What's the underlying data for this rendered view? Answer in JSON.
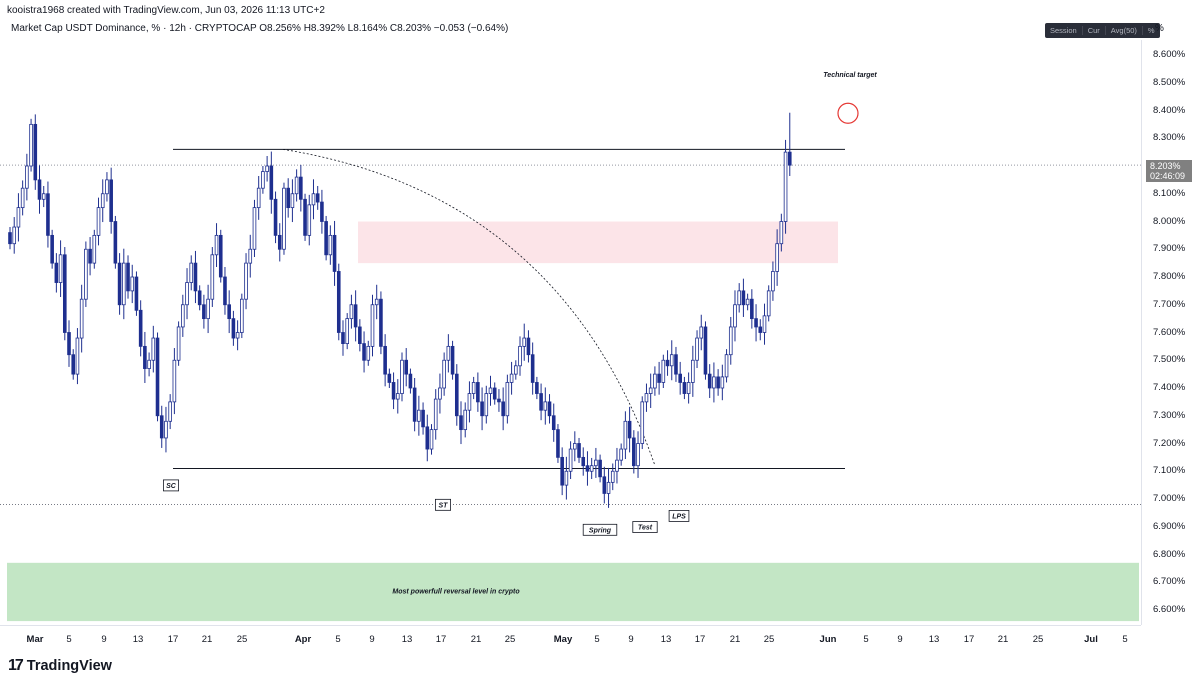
{
  "header": {
    "credit": "kooistra1968 created with TradingView.com, Jun 03, 2026 11:13 UTC+2",
    "symbol_line": "Market Cap USDT Dominance, % · 12h · CRYPTOCAP  O8.256%  H8.392%  L8.164%  C8.203%  −0.053 (−0.64%)",
    "toolbar": [
      "Session",
      "Cur",
      "Avg(50)",
      "%"
    ],
    "percent_label": "%"
  },
  "price_scale": {
    "ticks": [
      "8.600%",
      "8.500%",
      "8.400%",
      "8.300%",
      "8.200%",
      "8.100%",
      "8.000%",
      "7.900%",
      "7.800%",
      "7.700%",
      "7.600%",
      "7.500%",
      "7.400%",
      "7.300%",
      "7.200%",
      "7.100%",
      "7.000%",
      "6.900%",
      "6.800%",
      "6.700%",
      "6.600%"
    ],
    "last_price": "8.203%",
    "countdown": "02:46:09"
  },
  "time_scale": {
    "ticks": [
      {
        "label": "Mar",
        "month": true
      },
      {
        "label": "5"
      },
      {
        "label": "9"
      },
      {
        "label": "13"
      },
      {
        "label": "17"
      },
      {
        "label": "21"
      },
      {
        "label": "25"
      },
      {
        "label": "Apr",
        "month": true
      },
      {
        "label": "5"
      },
      {
        "label": "9"
      },
      {
        "label": "13"
      },
      {
        "label": "17"
      },
      {
        "label": "21"
      },
      {
        "label": "25"
      },
      {
        "label": "May",
        "month": true
      },
      {
        "label": "5"
      },
      {
        "label": "9"
      },
      {
        "label": "13"
      },
      {
        "label": "17"
      },
      {
        "label": "21"
      },
      {
        "label": "25"
      },
      {
        "label": "Jun",
        "month": true
      },
      {
        "label": "5"
      },
      {
        "label": "9"
      },
      {
        "label": "13"
      },
      {
        "label": "17"
      },
      {
        "label": "21"
      },
      {
        "label": "25"
      },
      {
        "label": "Jul",
        "month": true
      },
      {
        "label": "5"
      }
    ]
  },
  "annotations": {
    "sc": "SC",
    "st": "ST",
    "spring": "Spring",
    "test": "Test",
    "lps": "LPS",
    "technical_target": "Technical target",
    "reversal_zone": "Most powerfull reversal level in crypto"
  },
  "brand": {
    "logo_mark": "17",
    "name": "TradingView"
  },
  "colors": {
    "up": "#ffffff",
    "down": "#1e2f8f",
    "resistance_zone": "#fce4e8",
    "support_zone": "#c3e6c5",
    "target_circle": "#e53935"
  },
  "chart_data": {
    "type": "candlestick",
    "title": "Market Cap USDT Dominance, % · 12h · CRYPTOCAP",
    "ylim": [
      6.55,
      8.7
    ],
    "y_unit": "%",
    "last": {
      "open": 8.256,
      "high": 8.392,
      "low": 8.164,
      "close": 8.203,
      "change": -0.053,
      "change_pct": -0.64
    },
    "levels": {
      "range_top": 8.26,
      "range_bottom": 7.11,
      "dotted_support": 6.98
    },
    "zones": [
      {
        "name": "resistance",
        "from": 7.85,
        "to": 8.0
      },
      {
        "name": "support",
        "from": 6.56,
        "to": 6.77
      }
    ],
    "events": [
      {
        "label": "SC",
        "date": "Mar 17",
        "price": 7.19
      },
      {
        "label": "ST",
        "date": "Apr 17",
        "price": 7.11
      },
      {
        "label": "Spring",
        "date": "May 6",
        "price": 6.99
      },
      {
        "label": "Test",
        "date": "May 12",
        "price": 7.0
      },
      {
        "label": "LPS",
        "date": "May 14",
        "price": 7.06
      },
      {
        "label": "Technical target",
        "date": "Jun 3",
        "price": 8.39
      }
    ],
    "closes": [
      7.92,
      7.98,
      8.05,
      8.12,
      8.2,
      8.35,
      8.15,
      8.08,
      8.1,
      7.95,
      7.85,
      7.78,
      7.88,
      7.6,
      7.52,
      7.45,
      7.58,
      7.72,
      7.9,
      7.85,
      7.95,
      8.05,
      8.1,
      8.15,
      8.0,
      7.85,
      7.7,
      7.85,
      7.75,
      7.8,
      7.68,
      7.55,
      7.47,
      7.5,
      7.58,
      7.3,
      7.22,
      7.28,
      7.35,
      7.5,
      7.62,
      7.7,
      7.78,
      7.85,
      7.75,
      7.7,
      7.65,
      7.72,
      7.88,
      7.95,
      7.8,
      7.7,
      7.65,
      7.58,
      7.6,
      7.72,
      7.85,
      7.9,
      8.05,
      8.12,
      8.18,
      8.2,
      8.08,
      7.95,
      7.9,
      8.12,
      8.05,
      8.1,
      8.16,
      8.08,
      7.95,
      8.06,
      8.1,
      8.07,
      8.0,
      7.88,
      7.95,
      7.82,
      7.6,
      7.56,
      7.65,
      7.7,
      7.62,
      7.56,
      7.5,
      7.55,
      7.7,
      7.72,
      7.55,
      7.45,
      7.42,
      7.36,
      7.38,
      7.5,
      7.45,
      7.4,
      7.28,
      7.32,
      7.26,
      7.18,
      7.25,
      7.36,
      7.4,
      7.5,
      7.55,
      7.45,
      7.3,
      7.25,
      7.32,
      7.38,
      7.42,
      7.35,
      7.3,
      7.38,
      7.4,
      7.36,
      7.35,
      7.3,
      7.42,
      7.45,
      7.48,
      7.55,
      7.58,
      7.52,
      7.42,
      7.38,
      7.32,
      7.35,
      7.3,
      7.25,
      7.15,
      7.05,
      7.1,
      7.18,
      7.2,
      7.15,
      7.12,
      7.1,
      7.12,
      7.14,
      7.08,
      7.02,
      7.06,
      7.1,
      7.14,
      7.18,
      7.28,
      7.22,
      7.12,
      7.2,
      7.35,
      7.38,
      7.4,
      7.45,
      7.42,
      7.5,
      7.48,
      7.52,
      7.45,
      7.42,
      7.38,
      7.42,
      7.5,
      7.58,
      7.62,
      7.45,
      7.4,
      7.44,
      7.4,
      7.44,
      7.52,
      7.62,
      7.7,
      7.75,
      7.7,
      7.72,
      7.65,
      7.62,
      7.6,
      7.66,
      7.75,
      7.82,
      7.92,
      8.0,
      8.25,
      8.203
    ]
  }
}
